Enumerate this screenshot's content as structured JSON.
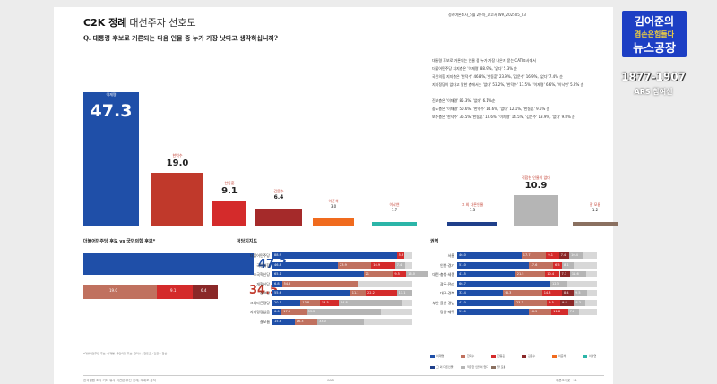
{
  "header": {
    "brand": "C2K 정례",
    "subtitle": "대선주자 선호도",
    "right_text": "정례여론조사_5월 2주차_보고서   WR_202505_03"
  },
  "question": "Q. 대통령 후보로 거론되는 다음 인물 중 누가 가장 낫다고 생각하십니까?",
  "notes": [
    "대통령 후보로 거론되는 인물 중 누가 가장 나은지 묻는 CATI조사에서",
    "더불어민주당 지지층은 '이재명' 88.9%, '없다' 5.3% 순",
    "국민의힘 지지층은 '한덕수' 46.8%,'한동훈' 23.9%, '김문수' 16.9%, '없다' 7.4% 순",
    "지지정당이 없다고 말한 층에서는 '없다' 53.2%, '한덕수' 17.5%, '이재명' 6.6%, '이낙연' 5.2% 순",
    "",
    "진보층은 '이재명' 85.3%, '없다' 6.1%순",
    "중도층은 '이재명' 50.6%, '한덕수' 14.6%, '없다' 12.1%, '한동훈' 9.6% 순",
    "보수층은 '한덕수' 36.5%,'한동훈' 13.6%, '이재명' 14.5%, '김문수' 13.9%, '없다' 9.8% 순"
  ],
  "candidates": [
    {
      "name": "이재명",
      "pct": "47.3",
      "value": 47.3,
      "color": "#1f4fa8"
    },
    {
      "name": "한덕수",
      "pct": "19.0",
      "value": 19.0,
      "color": "#c0392b"
    },
    {
      "name": "한동훈",
      "pct": "9.1",
      "value": 9.1,
      "color": "#d42b2b"
    },
    {
      "name": "김문수",
      "pct": "6.4",
      "value": 6.4,
      "color": "#a52a2a"
    },
    {
      "name": "이준석",
      "pct": "3.0",
      "value": 3.0,
      "color": "#f06b1e"
    },
    {
      "name": "이낙연",
      "pct": "1.7",
      "value": 1.7,
      "color": "#2bb5a8"
    },
    {
      "name": "그 외 다른인물",
      "pct": "1.3",
      "value": 1.3,
      "color": "#1f3f8a"
    },
    {
      "name": "적합한 인물이 없다",
      "pct": "10.9",
      "value": 10.9,
      "color": "#b5b5b5"
    },
    {
      "name": "잘 모름",
      "pct": "1.2",
      "value": 1.2,
      "color": "#8a7060"
    }
  ],
  "vs": {
    "title": "더불어민주당 후보 vs 국민의힘 후보*",
    "dem_value": "47.3",
    "ppp_value": "34.5",
    "ppp_parts": [
      "19.0",
      "9.1",
      "6.4"
    ]
  },
  "party": {
    "title": "정당지지도",
    "rows": [
      {
        "label": "더불어민주당",
        "segs": [
          "88.9",
          "",
          "5.3"
        ]
      },
      {
        "label": "국민의힘",
        "segs": [
          "46.8",
          "23.9",
          "16.9",
          "7.4"
        ]
      },
      {
        "label": "조국혁신당",
        "segs": [
          "65.1",
          "21",
          "9.5",
          "16.0"
        ]
      },
      {
        "label": "개혁신당",
        "segs": [
          "6.8",
          "54.5",
          "",
          ""
        ]
      },
      {
        "label": "진보당",
        "segs": [
          "55.6",
          "11.1",
          "22.2",
          "11.1"
        ]
      },
      {
        "label": "그외다른정당",
        "segs": [
          "20.1",
          "13.8",
          "13.5",
          "44.8"
        ]
      },
      {
        "label": "지지정당없음",
        "segs": [
          "6.6",
          "17.5",
          "",
          "53.2"
        ]
      },
      {
        "label": "잘모름",
        "segs": [
          "15.8",
          "16.3",
          "",
          "33.0"
        ]
      }
    ]
  },
  "region": {
    "title": "권역",
    "rows": [
      {
        "label": "서울",
        "segs": [
          "46.0",
          "17.7",
          "9.1",
          "7.4",
          "10.4"
        ]
      },
      {
        "label": "인천·경기",
        "segs": [
          "51.0",
          "17.6",
          "6.5",
          "",
          "8.1"
        ]
      },
      {
        "label": "대전·충청·세종",
        "segs": [
          "41.5",
          "21.5",
          "10.4",
          "7.3",
          "11.6"
        ]
      },
      {
        "label": "광주·전라",
        "segs": [
          "66.7",
          "",
          "",
          "",
          "12.3"
        ]
      },
      {
        "label": "대구·경북",
        "segs": [
          "32.4",
          "28.3",
          "14.3",
          "8.4",
          "9.5"
        ]
      },
      {
        "label": "부산·울산·경남",
        "segs": [
          "41.0",
          "23.3",
          "9.5",
          "9.8",
          "8.3"
        ]
      },
      {
        "label": "강원·제주",
        "segs": [
          "51.0",
          "16.5",
          "11.8",
          "",
          "7.8"
        ]
      }
    ]
  },
  "legend": [
    "이재명",
    "한덕수",
    "한동훈",
    "김문수",
    "이준석",
    "이낙연",
    "그 외 다른인물",
    "적합한 인물이 없다",
    "잘 모름"
  ],
  "footnote": "*더불어민주당 후보: 이재명, 국민의힘 후보: 한덕수 / 한동훈 / 김문수 합산",
  "page_footer": {
    "left": "한국갤럽 조사 기타 유사 의견은 무단 전재, 재배포 금지",
    "center": "CATI",
    "right": "여론조사꽃  ·  51"
  },
  "side": {
    "logo_line1": "김어준의",
    "logo_line2": "겸손은힘들다",
    "logo_line3": "뉴스공장",
    "time": "1877-1907",
    "ars": "ARS 참여신"
  }
}
